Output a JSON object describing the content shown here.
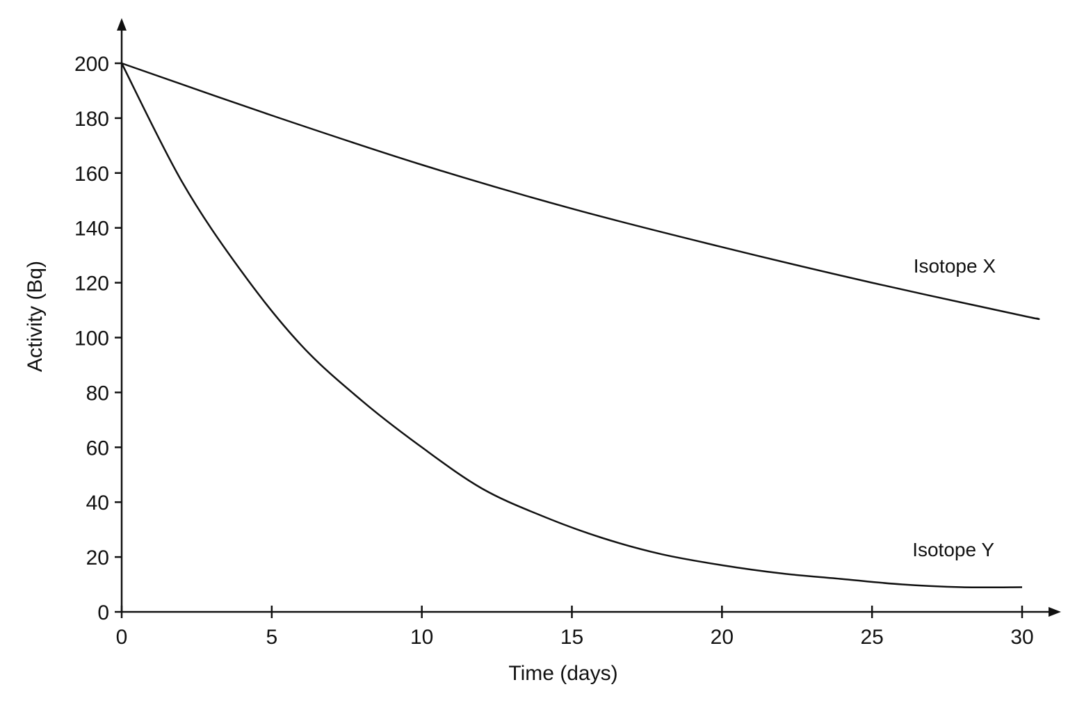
{
  "chart_data": {
    "type": "line",
    "xlabel": "Time (days)",
    "ylabel": "Activity (Bq)",
    "xlim": [
      0,
      30
    ],
    "ylim": [
      0,
      200
    ],
    "xticks": [
      0,
      5,
      10,
      15,
      20,
      25,
      30
    ],
    "yticks": [
      0,
      20,
      40,
      60,
      80,
      100,
      120,
      140,
      160,
      180,
      200
    ],
    "grid": false,
    "series": [
      {
        "name": "Isotope X",
        "x": [
          0,
          5,
          10,
          15,
          20,
          25,
          30,
          30.5
        ],
        "y": [
          200,
          181,
          163,
          147,
          133,
          120,
          108,
          107
        ]
      },
      {
        "name": "Isotope Y",
        "x": [
          0,
          2,
          4,
          6,
          8,
          10,
          12,
          14,
          16,
          18,
          20,
          22,
          24,
          26,
          28,
          30
        ],
        "y": [
          200,
          157,
          124,
          97,
          77,
          60,
          45,
          35,
          27,
          21,
          17,
          14,
          12,
          10,
          9,
          9
        ]
      }
    ]
  }
}
